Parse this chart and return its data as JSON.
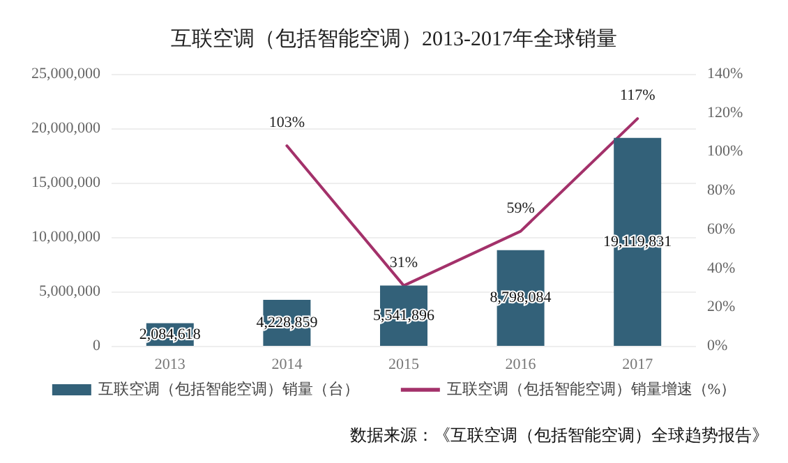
{
  "chart_data": {
    "type": "bar",
    "title": "互联空调（包括智能空调）2013-2017年全球销量",
    "categories": [
      "2013",
      "2014",
      "2015",
      "2016",
      "2017"
    ],
    "series": [
      {
        "name": "互联空调（包括智能空调）销量（台）",
        "color": "#336179",
        "values": [
          2084618,
          4228859,
          5541896,
          8798084,
          19119831
        ],
        "value_labels": [
          "2,084,618",
          "4,228,859",
          "5,541,896",
          "8,798,084",
          "19,119,831"
        ]
      },
      {
        "name": "互联空调（包括智能空调）销量增速（%）",
        "type": "line",
        "axis": "y2",
        "color": "#a3316a",
        "values": [
          null,
          103,
          31,
          59,
          117
        ],
        "value_labels": [
          null,
          "103%",
          "31%",
          "59%",
          "117%"
        ]
      }
    ],
    "ylim": [
      0,
      25000000
    ],
    "yticks": [
      {
        "value": 0,
        "label": "0"
      },
      {
        "value": 5000000,
        "label": "5,000,000"
      },
      {
        "value": 10000000,
        "label": "10,000,000"
      },
      {
        "value": 15000000,
        "label": "15,000,000"
      },
      {
        "value": 20000000,
        "label": "20,000,000"
      },
      {
        "value": 25000000,
        "label": "25,000,000"
      }
    ],
    "y2lim": [
      0,
      140
    ],
    "y2ticks": [
      {
        "value": 0,
        "label": "0%"
      },
      {
        "value": 20,
        "label": "20%"
      },
      {
        "value": 40,
        "label": "40%"
      },
      {
        "value": 60,
        "label": "60%"
      },
      {
        "value": 80,
        "label": "80%"
      },
      {
        "value": 100,
        "label": "100%"
      },
      {
        "value": 120,
        "label": "120%"
      },
      {
        "value": 140,
        "label": "140%"
      }
    ],
    "grid": "y",
    "legend": "bottom",
    "marker": "none",
    "line_style": "solid",
    "annotations": [
      "数据来源：《互联空调（包括智能空调）全球趋势报告》"
    ]
  }
}
